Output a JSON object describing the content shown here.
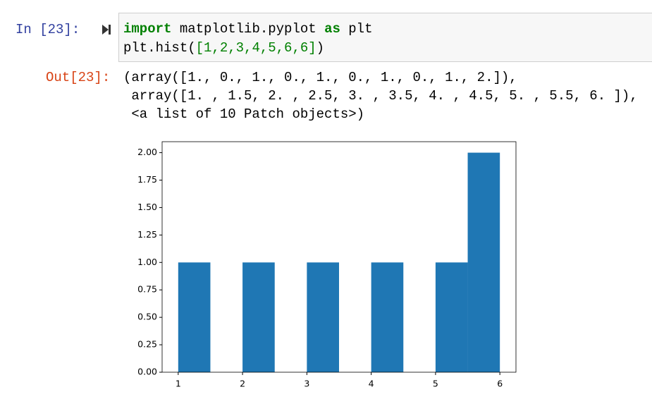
{
  "input_prompt": "In [23]:",
  "code": {
    "lines": [
      [
        "import",
        " matplotlib.pyplot ",
        "as",
        " plt"
      ],
      [
        "plt.hist(",
        "[1,2,3,4,5,6,6]",
        ")"
      ]
    ]
  },
  "output_prompt": "Out[23]:",
  "output": {
    "lines": [
      "(array([1., 0., 1., 0., 1., 0., 1., 0., 1., 2.]),",
      " array([1. , 1.5, 2. , 2.5, 3. , 3.5, 4. , 4.5, 5. , 5.5, 6. ]),",
      " <a list of 10 Patch objects>)"
    ]
  },
  "chart_data": {
    "type": "histogram",
    "bins": [
      1,
      1.5,
      2,
      2.5,
      3,
      3.5,
      4,
      4.5,
      5,
      5.5,
      6
    ],
    "values": [
      1,
      0,
      1,
      0,
      1,
      0,
      1,
      0,
      1,
      2
    ],
    "color": "#1f77b4",
    "xlim": [
      0.75,
      6.25
    ],
    "xticks": [
      1,
      2,
      3,
      4,
      5,
      6
    ],
    "ylim": [
      0,
      2.1
    ],
    "yticks": [
      {
        "value": 0,
        "label": "0.00"
      },
      {
        "value": 0.25,
        "label": "0.25"
      },
      {
        "value": 0.5,
        "label": "0.50"
      },
      {
        "value": 0.75,
        "label": "0.75"
      },
      {
        "value": 1,
        "label": "1.00"
      },
      {
        "value": 1.25,
        "label": "1.25"
      },
      {
        "value": 1.5,
        "label": "1.50"
      },
      {
        "value": 1.75,
        "label": "1.75"
      },
      {
        "value": 2,
        "label": "2.00"
      }
    ],
    "grid": false
  }
}
